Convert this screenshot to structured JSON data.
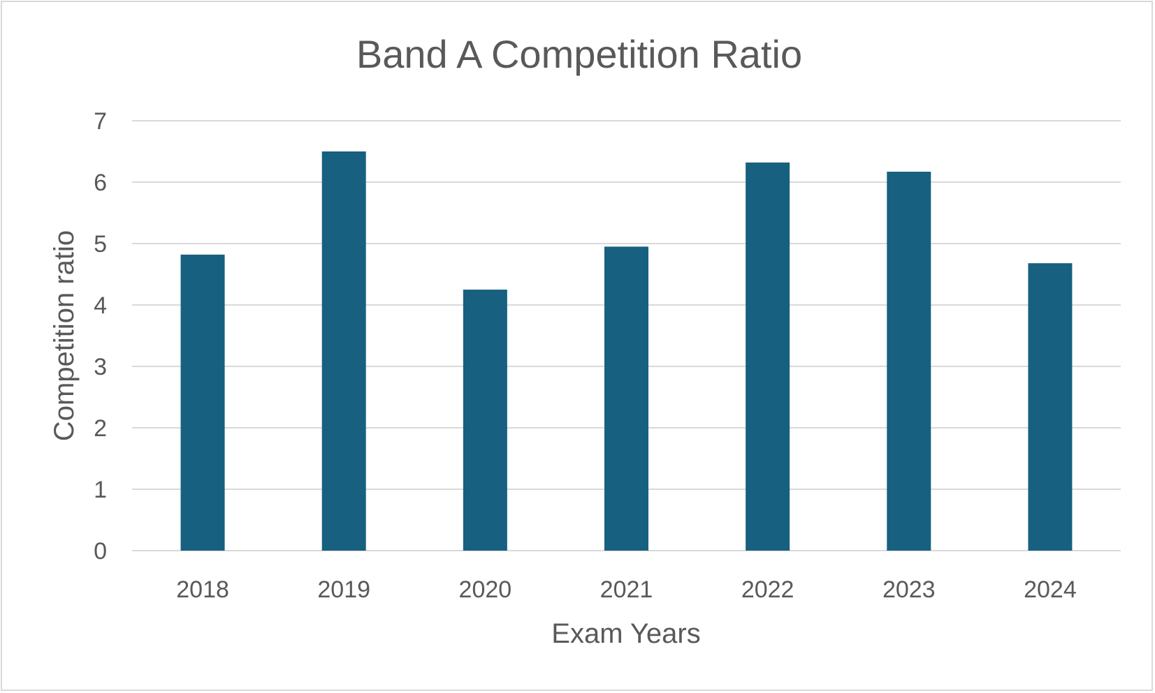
{
  "chart_data": {
    "type": "bar",
    "title": "Band A Competition Ratio",
    "xlabel": "Exam Years",
    "ylabel": "Competition ratio",
    "categories": [
      "2018",
      "2019",
      "2020",
      "2021",
      "2022",
      "2023",
      "2024"
    ],
    "values": [
      4.82,
      6.5,
      4.25,
      4.95,
      6.32,
      6.17,
      4.68
    ],
    "ylim": [
      0,
      7
    ],
    "yticks": [
      "0",
      "1",
      "2",
      "3",
      "4",
      "5",
      "6",
      "7"
    ],
    "grid": true,
    "legend": "none",
    "bar_color": "#17607f"
  }
}
